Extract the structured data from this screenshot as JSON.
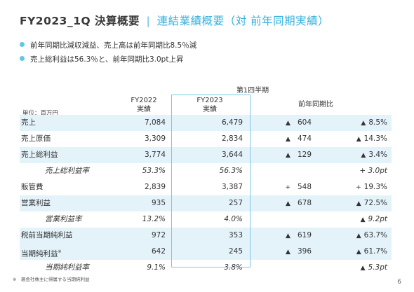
{
  "title": {
    "main": "FY2023_1Q 決算概要",
    "separator": "|",
    "sub": "連結業績概要（対 前年同期実績）"
  },
  "bullets": [
    "前年同期比減収減益、売上高は前年同期比8.5％減",
    "売上総利益は56.3％と、前年同期比3.0pt上昇"
  ],
  "table": {
    "period_label": "第1四半期",
    "unit_label": "単位：百万円",
    "col_fy2022": "FY2022\n実績",
    "col_fy2022_line1": "FY2022",
    "col_fy2022_line2": "実績",
    "col_fy2023_line1": "FY2023",
    "col_fy2023_line2": "実績",
    "col_yoy": "前年同期比",
    "rows": [
      {
        "label": "売上",
        "fy2022": "7,084",
        "fy2023": "6,479",
        "diff_sign": "▲",
        "diff": "604",
        "rate_sign": "▲",
        "rate": "8.5%"
      },
      {
        "label": "売上原価",
        "fy2022": "3,309",
        "fy2023": "2,834",
        "diff_sign": "▲",
        "diff": "474",
        "rate_sign": "▲",
        "rate": "14.3%"
      },
      {
        "label": "売上総利益",
        "fy2022": "3,774",
        "fy2023": "3,644",
        "diff_sign": "▲",
        "diff": "129",
        "rate_sign": "▲",
        "rate": "3.4%"
      },
      {
        "label": "売上総利益率",
        "fy2022": "53.3%",
        "fy2023": "56.3%",
        "diff_sign": "",
        "diff": "",
        "rate_sign": "",
        "rate": "+ 3.0pt"
      },
      {
        "label": "販管費",
        "fy2022": "2,839",
        "fy2023": "3,387",
        "diff_sign": "+",
        "diff": "548",
        "rate_sign": "+",
        "rate": "19.3%"
      },
      {
        "label": "営業利益",
        "fy2022": "935",
        "fy2023": "257",
        "diff_sign": "▲",
        "diff": "678",
        "rate_sign": "▲",
        "rate": "72.5%"
      },
      {
        "label": "営業利益率",
        "fy2022": "13.2%",
        "fy2023": "4.0%",
        "diff_sign": "",
        "diff": "",
        "rate_sign": "▲",
        "rate": "9.2pt"
      },
      {
        "label": "税前当期純利益",
        "fy2022": "972",
        "fy2023": "353",
        "diff_sign": "▲",
        "diff": "619",
        "rate_sign": "▲",
        "rate": "63.7%"
      },
      {
        "label": "当期純利益",
        "label_sup": "※",
        "fy2022": "642",
        "fy2023": "245",
        "diff_sign": "▲",
        "diff": "396",
        "rate_sign": "▲",
        "rate": "61.7%"
      },
      {
        "label": "当期純利益率",
        "fy2022": "9.1%",
        "fy2023": "3.8%",
        "diff_sign": "",
        "diff": "",
        "rate_sign": "▲",
        "rate": "5.3pt"
      }
    ]
  },
  "footnote": "※　親会社株主に帰属する当期純利益",
  "page_number": "6",
  "colors": {
    "accent": "#33b0dd",
    "row_shade": "#e4f3fa",
    "bullet": "#5ec7ea"
  }
}
